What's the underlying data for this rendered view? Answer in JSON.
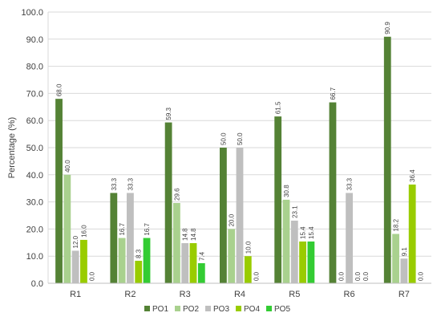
{
  "chart_data": {
    "type": "bar",
    "categories": [
      "R1",
      "R2",
      "R3",
      "R4",
      "R5",
      "R6",
      "R7"
    ],
    "series": [
      {
        "name": "PO1",
        "color": "#548235",
        "values": [
          68.0,
          33.3,
          59.3,
          50.0,
          61.5,
          66.7,
          90.9
        ]
      },
      {
        "name": "PO2",
        "color": "#a9d18e",
        "values": [
          40.0,
          16.7,
          29.6,
          20.0,
          30.8,
          0.0,
          18.2
        ]
      },
      {
        "name": "PO3",
        "color": "#bfbfbf",
        "values": [
          12.0,
          33.3,
          14.8,
          50.0,
          23.1,
          33.3,
          9.1
        ]
      },
      {
        "name": "PO4",
        "color": "#99cc00",
        "values": [
          16.0,
          8.3,
          14.8,
          10.0,
          15.4,
          0.0,
          36.4
        ]
      },
      {
        "name": "PO5",
        "color": "#33cc33",
        "values": [
          0.0,
          16.7,
          7.4,
          0.0,
          15.4,
          0.0,
          0.0
        ]
      }
    ],
    "yticks": [
      "0.0",
      "10.0",
      "20.0",
      "30.0",
      "40.0",
      "50.0",
      "60.0",
      "70.0",
      "80.0",
      "90.0",
      "100.0"
    ],
    "ylabel": "Percentage (%)",
    "xlabel": "",
    "title": "",
    "ylim": [
      0,
      100
    ],
    "grid": true,
    "legend_position": "bottom"
  }
}
